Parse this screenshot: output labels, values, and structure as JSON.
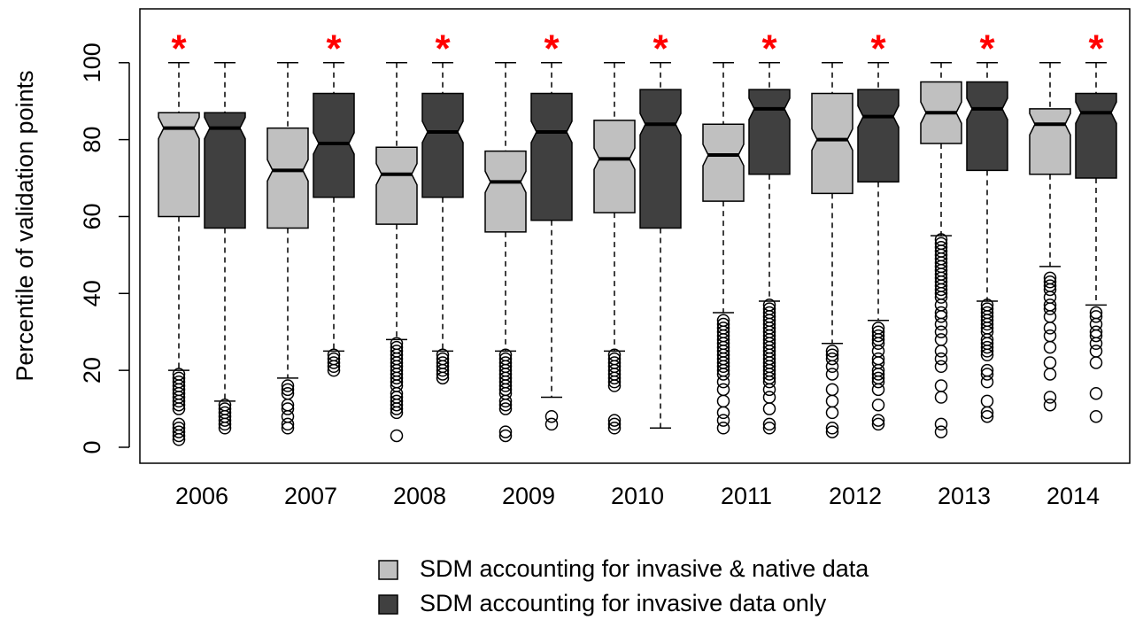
{
  "chart_data": {
    "type": "box",
    "y_label": "Percentile of validation points",
    "categories": [
      "2006",
      "2007",
      "2008",
      "2009",
      "2010",
      "2011",
      "2012",
      "2013",
      "2014"
    ],
    "ylim": [
      -4.15,
      114
    ],
    "yticks": [
      0,
      20,
      40,
      60,
      80,
      100
    ],
    "notch": true,
    "legend": "bottom",
    "significance_label": "*",
    "significance_color": "#ff0000",
    "significant_series": [
      0,
      1,
      1,
      1,
      1,
      1,
      1,
      1,
      1
    ],
    "series": [
      {
        "name": "SDM accounting for invasive & native data",
        "color": "#c0c0c0",
        "boxes": [
          {
            "low": 20,
            "q1": 60,
            "median": 83,
            "q3": 87,
            "high": 100,
            "outliers": [
              2,
              3,
              4,
              5,
              6,
              10,
              11,
              12,
              13,
              14,
              15,
              16,
              17,
              18,
              19
            ]
          },
          {
            "low": 18,
            "q1": 57,
            "median": 72,
            "q3": 83,
            "high": 100,
            "outliers": [
              5,
              6,
              8,
              10,
              11,
              14,
              15,
              16
            ]
          },
          {
            "low": 28,
            "q1": 58,
            "median": 71,
            "q3": 78,
            "high": 100,
            "outliers": [
              3,
              9,
              10,
              11,
              12,
              13,
              14,
              16,
              17,
              18,
              19,
              20,
              21,
              22,
              23,
              24,
              25,
              26,
              27
            ]
          },
          {
            "low": 25,
            "q1": 56,
            "median": 69,
            "q3": 77,
            "high": 100,
            "outliers": [
              3,
              4,
              10,
              11,
              12,
              14,
              15,
              16,
              17,
              18,
              19,
              20,
              21,
              22,
              23,
              24
            ]
          },
          {
            "low": 25,
            "q1": 61,
            "median": 75,
            "q3": 85,
            "high": 100,
            "outliers": [
              5,
              6,
              7,
              16,
              17,
              18,
              19,
              20,
              21,
              22,
              23,
              24
            ]
          },
          {
            "low": 35,
            "q1": 64,
            "median": 76,
            "q3": 84,
            "high": 100,
            "outliers": [
              5,
              7,
              9,
              12,
              15,
              17,
              19,
              20,
              21,
              22,
              23,
              24,
              25,
              26,
              27,
              28,
              29,
              30,
              31,
              32,
              33
            ]
          },
          {
            "low": 27,
            "q1": 66,
            "median": 80,
            "q3": 92,
            "high": 100,
            "outliers": [
              4,
              5,
              9,
              12,
              15,
              19,
              21,
              23,
              24,
              25
            ]
          },
          {
            "low": 55,
            "q1": 79,
            "median": 87,
            "q3": 95,
            "high": 100,
            "outliers": [
              4,
              6,
              13,
              16,
              21,
              23,
              25,
              28,
              30,
              32,
              34,
              35,
              37,
              39,
              40,
              41,
              42,
              43,
              44,
              45,
              46,
              47,
              48,
              49,
              50,
              51,
              52,
              53,
              54
            ]
          },
          {
            "low": 47,
            "q1": 71,
            "median": 84,
            "q3": 88,
            "high": 100,
            "outliers": [
              11,
              13,
              19,
              22,
              26,
              29,
              31,
              34,
              36,
              37,
              39,
              41,
              42,
              43,
              44
            ]
          }
        ]
      },
      {
        "name": "SDM accounting for invasive data only",
        "color": "#404040",
        "boxes": [
          {
            "low": 12,
            "q1": 57,
            "median": 83,
            "q3": 87,
            "high": 100,
            "outliers": [
              5,
              6,
              7,
              8,
              9,
              10,
              11
            ]
          },
          {
            "low": 25,
            "q1": 65,
            "median": 79,
            "q3": 92,
            "high": 100,
            "outliers": [
              20,
              21,
              22,
              23,
              24
            ]
          },
          {
            "low": 25,
            "q1": 65,
            "median": 82,
            "q3": 92,
            "high": 100,
            "outliers": [
              18,
              19,
              20,
              21,
              22,
              23,
              24
            ]
          },
          {
            "low": 13,
            "q1": 59,
            "median": 82,
            "q3": 92,
            "high": 100,
            "outliers": [
              6,
              8
            ]
          },
          {
            "low": 5,
            "q1": 57,
            "median": 84,
            "q3": 93,
            "high": 100,
            "outliers": []
          },
          {
            "low": 38,
            "q1": 71,
            "median": 88,
            "q3": 93,
            "high": 100,
            "outliers": [
              5,
              6,
              10,
              13,
              15,
              17,
              18,
              19,
              20,
              21,
              22,
              23,
              24,
              25,
              26,
              27,
              28,
              29,
              30,
              31,
              32,
              33,
              34,
              35,
              36,
              37
            ]
          },
          {
            "low": 33,
            "q1": 69,
            "median": 86,
            "q3": 93,
            "high": 100,
            "outliers": [
              6,
              7,
              11,
              15,
              17,
              18,
              19,
              20,
              22,
              23,
              25,
              27,
              28,
              29,
              30,
              31
            ]
          },
          {
            "low": 38,
            "q1": 72,
            "median": 88,
            "q3": 95,
            "high": 100,
            "outliers": [
              8,
              9,
              12,
              17,
              19,
              20,
              24,
              25,
              26,
              27,
              28,
              30,
              31,
              32,
              33,
              34,
              35,
              36,
              37
            ]
          },
          {
            "low": 37,
            "q1": 70,
            "median": 87,
            "q3": 92,
            "high": 100,
            "outliers": [
              8,
              14,
              22,
              25,
              27,
              29,
              30,
              32,
              34,
              35
            ]
          }
        ]
      }
    ]
  }
}
